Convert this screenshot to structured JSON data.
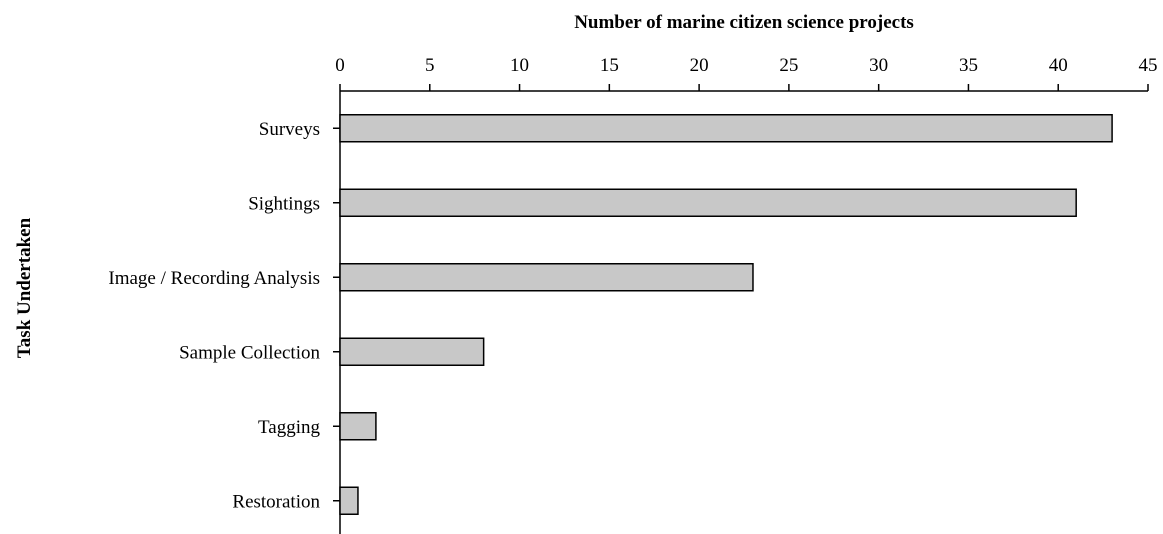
{
  "chart_data": {
    "type": "bar",
    "orientation": "horizontal",
    "title": "",
    "xlabel": "Number of marine citizen science projects",
    "ylabel": "Task Undertaken",
    "categories": [
      "Surveys",
      "Sightings",
      "Image / Recording Analysis",
      "Sample Collection",
      "Tagging",
      "Restoration"
    ],
    "values": [
      43,
      41,
      23,
      8,
      2,
      1
    ],
    "xlim": [
      0,
      45
    ],
    "xticks": [
      "0",
      "5",
      "10",
      "15",
      "20",
      "25",
      "30",
      "35",
      "40",
      "45"
    ],
    "x_axis_position": "top",
    "grid": false,
    "legend": "none",
    "bar_color": "#c8c8c8",
    "bar_edge_color": "#000000"
  }
}
